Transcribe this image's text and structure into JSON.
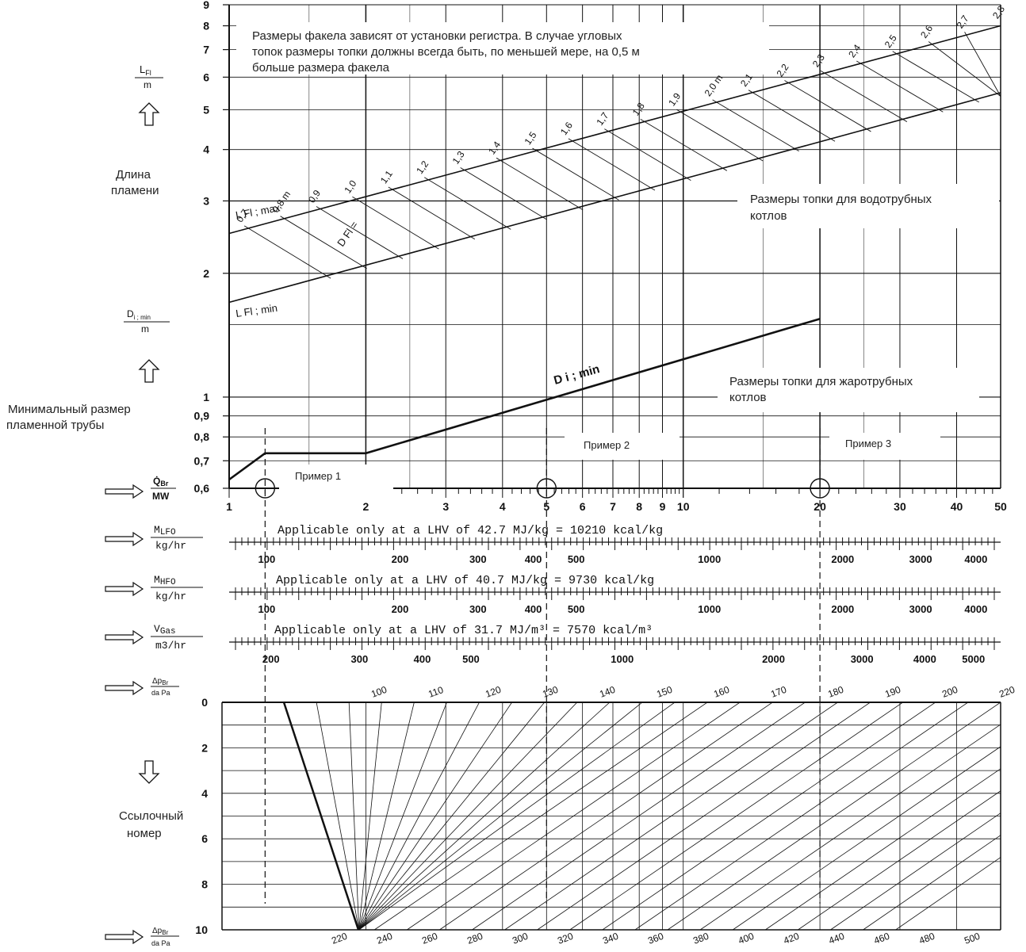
{
  "annotations": {
    "flame_note": [
      "Размеры факела зависят от установки регистра. В случае угловых",
      "топок размеры топки должны всегда быть, по меньшей мере, на 0,5 м",
      "больше размера факела"
    ],
    "watertube": [
      "Размеры топки для водотрубных",
      "котлов"
    ],
    "firetube": [
      "Размеры топки для жаротрубных",
      "котлов"
    ],
    "example1": "Пример 1",
    "example2": "Пример 2",
    "example3": "Пример 3",
    "flame_length": [
      "Длина",
      "пламени"
    ],
    "min_tube": [
      "Минимальный размер",
      "пламенной трубы"
    ],
    "ref_number": [
      "Ссылочный",
      "номер"
    ]
  },
  "left_labels": {
    "lfl_top": "L",
    "lfl_sub": "Fl",
    "lfl_unit": "m",
    "dimin_top": "D",
    "dimin_sub": "i ; min",
    "dimin_unit": "m",
    "qbr_top": "Q̇",
    "qbr_sub": "Br",
    "qbr_unit": "MW",
    "mlfo_top": "M",
    "mlfo_sub": "LFO",
    "mlfo_unit": "kg/hr",
    "mhfo_top": "M",
    "mhfo_sub": "HFO",
    "mhfo_unit": "kg/hr",
    "vgas_top": "V",
    "vgas_sub": "Gas",
    "vgas_unit": "m3/hr",
    "dp1_top": "Δp",
    "dp1_sub": "Br",
    "dp1_unit": "da Pa",
    "dp2_top": "Δp",
    "dp2_sub": "Br",
    "dp2_unit": "da Pa"
  },
  "fuel_notes": {
    "lfo": "Applicable only at a LHV of 42.7 MJ/kg = 10210 kcal/kg",
    "hfo": "Applicable only at a LHV of 40.7 MJ/kg = 9730 kcal/kg",
    "gas": "Applicable only at a LHV of 31.7 MJ/m³ = 7570 kcal/m³"
  },
  "chart_data": {
    "type": "nomogram",
    "flame_axis": {
      "label": "L Fl / m",
      "scale": "log",
      "ylim": [
        0.6,
        9
      ],
      "ticks": [
        "9",
        "8",
        "7",
        "6",
        "5",
        "4",
        "3",
        "2",
        "1",
        "0,9",
        "0,8",
        "0,7",
        "0,6"
      ]
    },
    "power_axis": {
      "label": "Q̇ Br / MW",
      "scale": "log",
      "xlim": [
        1,
        50
      ],
      "ticks": [
        "1",
        "2",
        "3",
        "4",
        "5",
        "6",
        "7",
        "8",
        "9",
        "10",
        "20",
        "30",
        "40",
        "50"
      ]
    },
    "lfo_axis": {
      "unit": "kg/hr",
      "ticks": [
        "100",
        "200",
        "300",
        "400",
        "500",
        "1000",
        "2000",
        "3000",
        "4000"
      ]
    },
    "hfo_axis": {
      "unit": "kg/hr",
      "ticks": [
        "100",
        "200",
        "300",
        "400",
        "500",
        "1000",
        "2000",
        "3000",
        "4000"
      ]
    },
    "gas_axis": {
      "unit": "m³/hr",
      "ticks": [
        "200",
        "300",
        "400",
        "500",
        "1000",
        "2000",
        "3000",
        "4000",
        "5000"
      ]
    },
    "series": [
      {
        "name": "L Fl ; max",
        "x": [
          1,
          50
        ],
        "y": [
          2.5,
          8.0
        ]
      },
      {
        "name": "L Fl ; min",
        "x": [
          1,
          50
        ],
        "y": [
          1.7,
          5.5
        ]
      },
      {
        "name": "D i ; min",
        "x": [
          1,
          1.2,
          2.0,
          20
        ],
        "y": [
          0.63,
          0.73,
          0.73,
          1.55
        ]
      }
    ],
    "diameter_lines": {
      "label": "D Fl =",
      "labels": [
        "0,7",
        "0,8 m",
        "0,9",
        "1,0",
        "1,1",
        "1,2",
        "1,3",
        "1,4",
        "1,5",
        "1,6",
        "1,7",
        "1,8",
        "1,9",
        "2,0 m",
        "2,1",
        "2,2",
        "2,3",
        "2,4",
        "2,5",
        "2,6",
        "2,7",
        "2,8"
      ]
    },
    "examples": [
      {
        "name": "Пример 1",
        "power_mw": 1.2
      },
      {
        "name": "Пример 2",
        "power_mw": 5
      },
      {
        "name": "Пример 3",
        "power_mw": 20
      }
    ],
    "reference_axis": {
      "label": "Δp Br / da Pa",
      "ticks": [
        "0",
        "2",
        "4",
        "6",
        "8",
        "10"
      ]
    },
    "top_pressure_labels": [
      "100",
      "110",
      "120",
      "130",
      "140",
      "150",
      "160",
      "170",
      "180",
      "190",
      "200",
      "220"
    ],
    "bottom_pressure_labels": [
      "220",
      "240",
      "260",
      "280",
      "300",
      "320",
      "340",
      "360",
      "380",
      "400",
      "420",
      "440",
      "460",
      "480",
      "500"
    ]
  }
}
